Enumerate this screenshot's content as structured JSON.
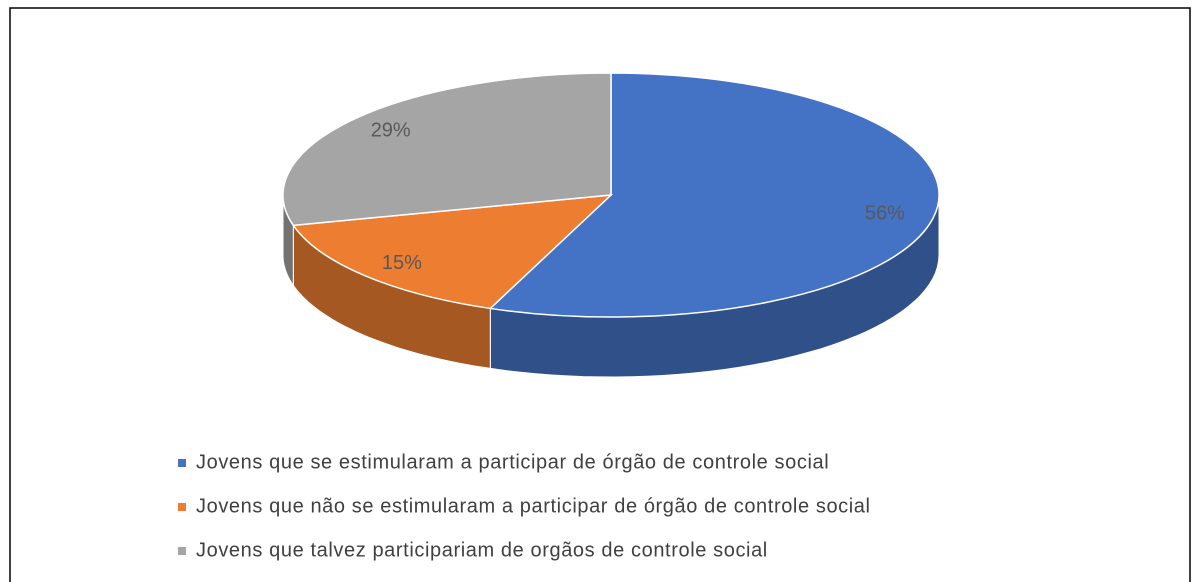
{
  "chart_data": {
    "type": "pie",
    "categories": [
      "Jovens que se estimularam a participar de órgão de controle social",
      "Jovens que não se estimularam a participar de órgão de controle social",
      "Jovens que talvez participariam de orgãos de controle social"
    ],
    "values": [
      56,
      15,
      29
    ],
    "value_labels": [
      "56%",
      "15%",
      "29%"
    ],
    "colors": [
      "#4472c4",
      "#ed7d31",
      "#a5a5a5"
    ],
    "legend": "bottom"
  }
}
